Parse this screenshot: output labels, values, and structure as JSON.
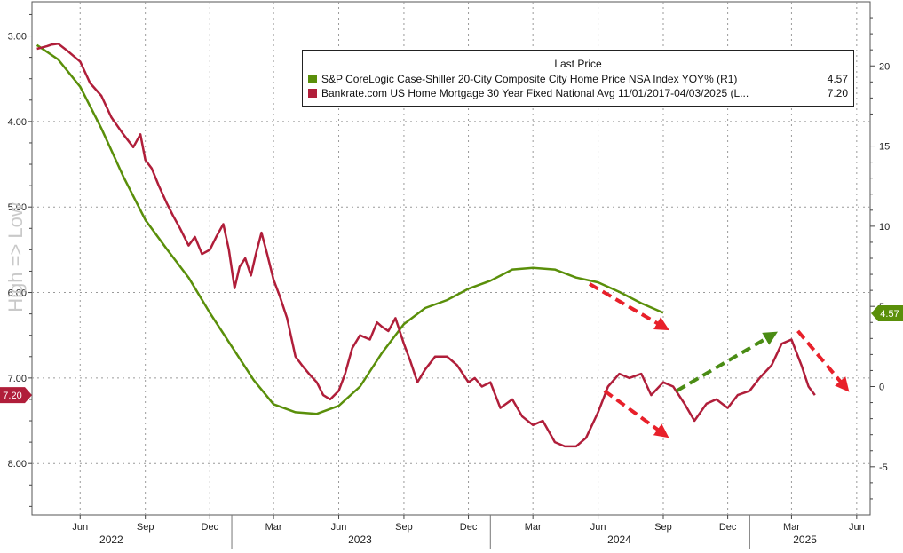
{
  "chart_data": {
    "type": "line",
    "ylabel_left": "High => Low",
    "y_left_inverted": true,
    "ylim_left": [
      2.6,
      8.6
    ],
    "ylim_right": [
      -8,
      24
    ],
    "y_left_ticks": [
      "3.00",
      "4.00",
      "5.00",
      "6.00",
      "7.00",
      "8.00"
    ],
    "y_right_ticks": [
      "20",
      "15",
      "10",
      "5",
      "0",
      "-5"
    ],
    "x_ticks": [
      {
        "label": "Jun",
        "date": "2022-06-01"
      },
      {
        "label": "Sep",
        "date": "2022-09-01"
      },
      {
        "label": "Dec",
        "date": "2022-12-01"
      },
      {
        "label": "Mar",
        "date": "2023-03-01"
      },
      {
        "label": "Jun",
        "date": "2023-06-01"
      },
      {
        "label": "Sep",
        "date": "2023-09-01"
      },
      {
        "label": "Dec",
        "date": "2023-12-01"
      },
      {
        "label": "Mar",
        "date": "2024-03-01"
      },
      {
        "label": "Jun",
        "date": "2024-06-01"
      },
      {
        "label": "Sep",
        "date": "2024-09-01"
      },
      {
        "label": "Dec",
        "date": "2024-12-01"
      },
      {
        "label": "Mar",
        "date": "2025-03-01"
      },
      {
        "label": "Jun",
        "date": "2025-06-01"
      }
    ],
    "year_labels": [
      {
        "label": "2022",
        "date": "2022-07-15"
      },
      {
        "label": "2023",
        "date": "2023-07-01"
      },
      {
        "label": "2024",
        "date": "2024-07-01"
      },
      {
        "label": "2025",
        "date": "2025-03-20"
      }
    ],
    "year_separators": [
      "2023-01-01",
      "2024-01-01",
      "2025-01-01"
    ],
    "grid": true,
    "legend": {
      "title": "Last Price",
      "placement": "top-right",
      "entries": [
        {
          "name": "S&P CoreLogic Case-Shiller 20-City Composite City Home Price NSA Index YOY%  (R1)",
          "value": "4.57",
          "color": "#5a8f0a"
        },
        {
          "name": "Bankrate.com US Home Mortgage 30 Year Fixed National Avg 11/01/2017-04/03/2025   (L...",
          "value": "7.20",
          "color": "#b01e3a"
        }
      ]
    },
    "last_value_tags": [
      {
        "text": "7.20",
        "axis": "left",
        "value": 7.2,
        "color": "#b01e3a"
      },
      {
        "text": "4.57",
        "axis": "right",
        "value": 4.57,
        "color": "#5a8f0a"
      }
    ],
    "series": [
      {
        "name": "S&P CoreLogic Case-Shiller 20-City Composite City Home Price NSA Index YOY%  (R1)",
        "axis": "right",
        "color": "#5a8f0a",
        "points": [
          [
            "2022-04-01",
            21.3
          ],
          [
            "2022-05-01",
            20.4
          ],
          [
            "2022-06-01",
            18.7
          ],
          [
            "2022-07-01",
            16.1
          ],
          [
            "2022-08-01",
            13.1
          ],
          [
            "2022-09-01",
            10.4
          ],
          [
            "2022-10-01",
            8.6
          ],
          [
            "2022-11-01",
            6.8
          ],
          [
            "2022-12-01",
            4.6
          ],
          [
            "2023-01-01",
            2.5
          ],
          [
            "2023-02-01",
            0.4
          ],
          [
            "2023-03-01",
            -1.1
          ],
          [
            "2023-04-01",
            -1.6
          ],
          [
            "2023-05-01",
            -1.7
          ],
          [
            "2023-06-01",
            -1.2
          ],
          [
            "2023-07-01",
            0.0
          ],
          [
            "2023-08-01",
            2.1
          ],
          [
            "2023-09-01",
            3.9
          ],
          [
            "2023-10-01",
            4.9
          ],
          [
            "2023-11-01",
            5.4
          ],
          [
            "2023-12-01",
            6.1
          ],
          [
            "2024-01-01",
            6.6
          ],
          [
            "2024-02-01",
            7.3
          ],
          [
            "2024-03-01",
            7.4
          ],
          [
            "2024-04-01",
            7.3
          ],
          [
            "2024-05-01",
            6.8
          ],
          [
            "2024-06-01",
            6.5
          ],
          [
            "2024-07-01",
            5.9
          ],
          [
            "2024-08-01",
            5.2
          ],
          [
            "2024-09-01",
            4.6
          ]
        ]
      },
      {
        "name": "Bankrate.com US Home Mortgage 30 Year Fixed National Avg 11/01/2017-04/03/2025   (L...",
        "axis": "left",
        "color": "#b01e3a",
        "points": [
          [
            "2022-04-01",
            3.15
          ],
          [
            "2022-04-15",
            3.12
          ],
          [
            "2022-04-22",
            3.1
          ],
          [
            "2022-05-01",
            3.09
          ],
          [
            "2022-05-15",
            3.18
          ],
          [
            "2022-06-01",
            3.3
          ],
          [
            "2022-06-15",
            3.55
          ],
          [
            "2022-07-01",
            3.7
          ],
          [
            "2022-07-15",
            3.95
          ],
          [
            "2022-08-01",
            4.15
          ],
          [
            "2022-08-15",
            4.3
          ],
          [
            "2022-08-25",
            4.15
          ],
          [
            "2022-09-01",
            4.45
          ],
          [
            "2022-09-10",
            4.55
          ],
          [
            "2022-09-20",
            4.75
          ],
          [
            "2022-10-01",
            4.95
          ],
          [
            "2022-10-10",
            5.1
          ],
          [
            "2022-10-20",
            5.25
          ],
          [
            "2022-11-01",
            5.45
          ],
          [
            "2022-11-10",
            5.35
          ],
          [
            "2022-11-20",
            5.55
          ],
          [
            "2022-12-01",
            5.5
          ],
          [
            "2022-12-10",
            5.35
          ],
          [
            "2022-12-20",
            5.2
          ],
          [
            "2022-12-28",
            5.5
          ],
          [
            "2023-01-05",
            5.95
          ],
          [
            "2023-01-12",
            5.7
          ],
          [
            "2023-01-20",
            5.6
          ],
          [
            "2023-01-28",
            5.8
          ],
          [
            "2023-02-04",
            5.55
          ],
          [
            "2023-02-12",
            5.3
          ],
          [
            "2023-02-20",
            5.55
          ],
          [
            "2023-03-01",
            5.85
          ],
          [
            "2023-03-10",
            6.05
          ],
          [
            "2023-03-20",
            6.3
          ],
          [
            "2023-04-01",
            6.75
          ],
          [
            "2023-04-10",
            6.85
          ],
          [
            "2023-04-20",
            6.95
          ],
          [
            "2023-05-01",
            7.05
          ],
          [
            "2023-05-10",
            7.2
          ],
          [
            "2023-05-20",
            7.25
          ],
          [
            "2023-06-01",
            7.15
          ],
          [
            "2023-06-10",
            6.95
          ],
          [
            "2023-06-20",
            6.65
          ],
          [
            "2023-07-01",
            6.5
          ],
          [
            "2023-07-15",
            6.55
          ],
          [
            "2023-07-25",
            6.35
          ],
          [
            "2023-08-01",
            6.4
          ],
          [
            "2023-08-10",
            6.45
          ],
          [
            "2023-08-20",
            6.3
          ],
          [
            "2023-09-01",
            6.6
          ],
          [
            "2023-09-10",
            6.8
          ],
          [
            "2023-09-20",
            7.05
          ],
          [
            "2023-10-01",
            6.9
          ],
          [
            "2023-10-15",
            6.75
          ],
          [
            "2023-11-01",
            6.75
          ],
          [
            "2023-11-15",
            6.85
          ],
          [
            "2023-12-01",
            7.05
          ],
          [
            "2023-12-10",
            7.0
          ],
          [
            "2023-12-20",
            7.1
          ],
          [
            "2024-01-01",
            7.05
          ],
          [
            "2024-01-15",
            7.35
          ],
          [
            "2024-02-01",
            7.25
          ],
          [
            "2024-02-15",
            7.45
          ],
          [
            "2024-03-01",
            7.55
          ],
          [
            "2024-03-15",
            7.5
          ],
          [
            "2024-04-01",
            7.75
          ],
          [
            "2024-04-15",
            7.8
          ],
          [
            "2024-05-01",
            7.8
          ],
          [
            "2024-05-15",
            7.7
          ],
          [
            "2024-06-01",
            7.4
          ],
          [
            "2024-06-15",
            7.1
          ],
          [
            "2024-07-01",
            6.95
          ],
          [
            "2024-07-15",
            7.0
          ],
          [
            "2024-08-01",
            6.95
          ],
          [
            "2024-08-15",
            7.2
          ],
          [
            "2024-09-01",
            7.05
          ],
          [
            "2024-09-15",
            7.1
          ],
          [
            "2024-10-01",
            7.3
          ],
          [
            "2024-10-15",
            7.5
          ],
          [
            "2024-11-01",
            7.3
          ],
          [
            "2024-11-15",
            7.25
          ],
          [
            "2024-12-01",
            7.35
          ],
          [
            "2024-12-15",
            7.2
          ],
          [
            "2025-01-01",
            7.15
          ],
          [
            "2025-01-15",
            7.0
          ],
          [
            "2025-02-01",
            6.85
          ],
          [
            "2025-02-15",
            6.6
          ],
          [
            "2025-03-01",
            6.55
          ],
          [
            "2025-03-15",
            6.85
          ],
          [
            "2025-03-25",
            7.1
          ],
          [
            "2025-04-03",
            7.2
          ]
        ]
      }
    ],
    "annotations": [
      {
        "type": "arrow",
        "color": "#e8202a",
        "from": [
          "2024-05-20",
          5.9
        ],
        "to": [
          "2024-09-01",
          6.4
        ],
        "from_axis": "left"
      },
      {
        "type": "arrow",
        "color": "#e8202a",
        "from": [
          "2024-06-10",
          7.15
        ],
        "to": [
          "2024-09-01",
          7.65
        ],
        "from_axis": "left"
      },
      {
        "type": "arrow",
        "color": "#4a8c14",
        "from": [
          "2024-09-20",
          7.15
        ],
        "to": [
          "2025-02-01",
          6.5
        ],
        "from_axis": "left"
      },
      {
        "type": "arrow",
        "color": "#e8202a",
        "from": [
          "2025-03-10",
          6.45
        ],
        "to": [
          "2025-05-15",
          7.1
        ],
        "from_axis": "left"
      }
    ]
  }
}
